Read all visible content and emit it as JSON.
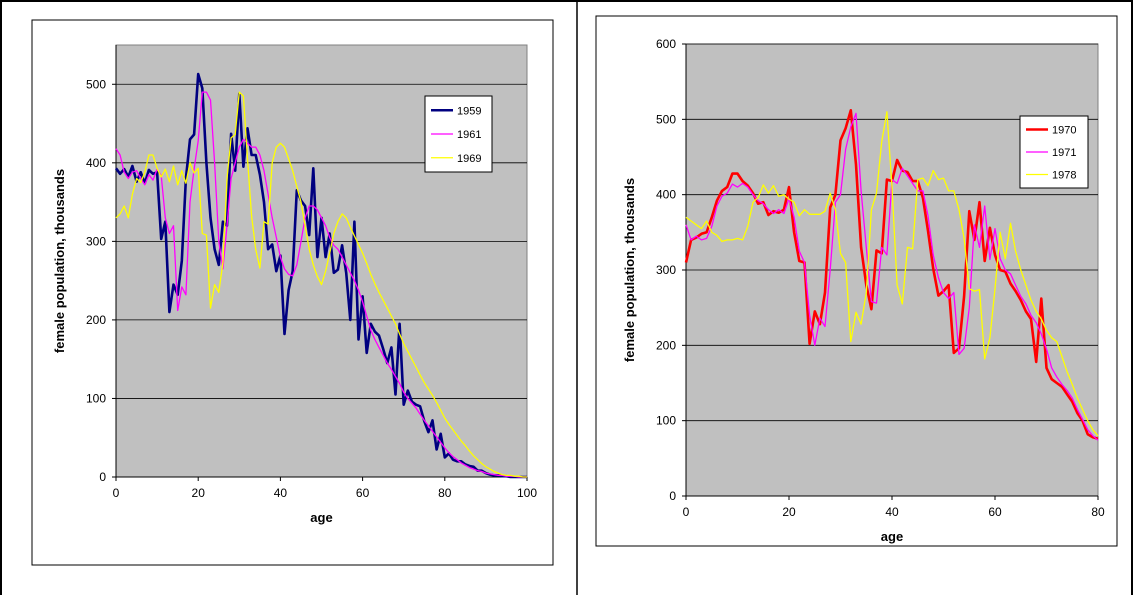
{
  "chart_data": [
    {
      "type": "line",
      "xlabel": "age",
      "ylabel": "female population, thousands",
      "xlim": [
        0,
        100
      ],
      "ylim": [
        0,
        550
      ],
      "xticks": [
        "0",
        "20",
        "40",
        "60",
        "80",
        "100"
      ],
      "yticks": [
        "0",
        "100",
        "200",
        "300",
        "400",
        "500"
      ],
      "grid": "horizontal",
      "legend": "right",
      "background": "#c0c0c0",
      "series": [
        {
          "name": "1959",
          "color": "#000080",
          "x": [
            0,
            1,
            2,
            3,
            4,
            5,
            6,
            7,
            8,
            9,
            10,
            11,
            12,
            13,
            14,
            15,
            16,
            17,
            18,
            19,
            20,
            21,
            22,
            23,
            24,
            25,
            26,
            27,
            28,
            29,
            30,
            31,
            32,
            33,
            34,
            35,
            36,
            37,
            38,
            39,
            40,
            41,
            42,
            43,
            44,
            45,
            46,
            47,
            48,
            49,
            50,
            51,
            52,
            53,
            54,
            55,
            56,
            57,
            58,
            59,
            60,
            61,
            62,
            63,
            64,
            65,
            66,
            67,
            68,
            69,
            70,
            71,
            72,
            73,
            74,
            75,
            76,
            77,
            78,
            79,
            80,
            81,
            82,
            83,
            84,
            85,
            86,
            87,
            88,
            89,
            90,
            91,
            92,
            93,
            94,
            95,
            96,
            97,
            98,
            99,
            100
          ],
          "values": [
            393,
            386,
            392,
            382,
            396,
            376,
            388,
            374,
            391,
            386,
            388,
            303,
            325,
            210,
            245,
            232,
            275,
            380,
            430,
            436,
            513,
            495,
            400,
            330,
            290,
            270,
            325,
            320,
            437,
            390,
            488,
            395,
            444,
            410,
            410,
            385,
            350,
            290,
            296,
            262,
            282,
            182,
            238,
            262,
            365,
            352,
            345,
            308,
            393,
            280,
            330,
            280,
            310,
            260,
            264,
            295,
            260,
            200,
            325,
            175,
            230,
            158,
            195,
            185,
            180,
            163,
            145,
            165,
            105,
            195,
            92,
            110,
            96,
            92,
            90,
            71,
            57,
            72,
            35,
            55,
            25,
            30,
            22,
            20,
            20,
            16,
            14,
            13,
            8,
            8,
            5,
            3,
            2,
            2,
            1,
            1,
            0,
            0,
            0,
            0,
            0
          ]
        },
        {
          "name": "1961",
          "color": "#ff00ff",
          "x": [
            0,
            1,
            2,
            3,
            4,
            5,
            6,
            7,
            8,
            9,
            10,
            11,
            12,
            13,
            14,
            15,
            16,
            17,
            18,
            19,
            20,
            21,
            22,
            23,
            24,
            25,
            26,
            27,
            28,
            29,
            30,
            31,
            32,
            33,
            34,
            35,
            36,
            37,
            38,
            39,
            40,
            41,
            42,
            43,
            44,
            45,
            46,
            47,
            48,
            49,
            50,
            51,
            52,
            53,
            54,
            55,
            56,
            57,
            58,
            59,
            60,
            61,
            62,
            63,
            64,
            65,
            66,
            67,
            68,
            69,
            70,
            71,
            72,
            73,
            74,
            75,
            76,
            77,
            78,
            79,
            80,
            81,
            82,
            83,
            84,
            85,
            86,
            87,
            88,
            89,
            90,
            91,
            92,
            93,
            94,
            95,
            96,
            97,
            98,
            99,
            100
          ],
          "values": [
            418,
            410,
            388,
            380,
            388,
            390,
            380,
            372,
            385,
            378,
            392,
            384,
            330,
            310,
            320,
            212,
            242,
            232,
            350,
            392,
            428,
            490,
            490,
            480,
            400,
            300,
            265,
            320,
            380,
            400,
            420,
            430,
            425,
            420,
            420,
            410,
            390,
            360,
            330,
            305,
            280,
            265,
            258,
            256,
            270,
            300,
            330,
            345,
            345,
            340,
            330,
            320,
            305,
            295,
            290,
            280,
            270,
            260,
            250,
            238,
            223,
            205,
            187,
            175,
            165,
            155,
            145,
            137,
            128,
            119,
            108,
            100,
            94,
            88,
            80,
            72,
            65,
            58,
            51,
            44,
            37,
            31,
            26,
            22,
            18,
            15,
            12,
            10,
            8,
            7,
            5,
            4,
            3,
            2,
            2,
            1,
            1,
            1,
            0,
            0,
            0
          ]
        },
        {
          "name": "1969",
          "color": "#ffff00",
          "x": [
            0,
            1,
            2,
            3,
            4,
            5,
            6,
            7,
            8,
            9,
            10,
            11,
            12,
            13,
            14,
            15,
            16,
            17,
            18,
            19,
            20,
            21,
            22,
            23,
            24,
            25,
            26,
            27,
            28,
            29,
            30,
            31,
            32,
            33,
            34,
            35,
            36,
            37,
            38,
            39,
            40,
            41,
            42,
            43,
            44,
            45,
            46,
            47,
            48,
            49,
            50,
            51,
            52,
            53,
            54,
            55,
            56,
            57,
            58,
            59,
            60,
            61,
            62,
            63,
            64,
            65,
            66,
            67,
            68,
            69,
            70,
            71,
            72,
            73,
            74,
            75,
            76,
            77,
            78,
            79,
            80,
            81,
            82,
            83,
            84,
            85,
            86,
            87,
            88,
            89,
            90,
            91,
            92,
            93,
            94,
            95,
            96,
            97,
            98,
            99,
            100
          ],
          "values": [
            330,
            335,
            345,
            330,
            360,
            380,
            375,
            388,
            410,
            410,
            393,
            382,
            392,
            376,
            396,
            372,
            390,
            374,
            400,
            387,
            393,
            310,
            308,
            215,
            245,
            235,
            273,
            380,
            432,
            436,
            490,
            485,
            405,
            332,
            290,
            266,
            325,
            322,
            400,
            420,
            425,
            420,
            405,
            390,
            370,
            350,
            320,
            290,
            270,
            255,
            245,
            262,
            285,
            310,
            325,
            335,
            330,
            318,
            307,
            296,
            285,
            272,
            258,
            246,
            235,
            225,
            215,
            205,
            195,
            182,
            170,
            160,
            150,
            140,
            130,
            120,
            112,
            104,
            95,
            85,
            75,
            67,
            60,
            53,
            46,
            40,
            33,
            27,
            22,
            17,
            13,
            10,
            7,
            5,
            3,
            2,
            2,
            1,
            1,
            0,
            0
          ]
        }
      ]
    },
    {
      "type": "line",
      "xlabel": "age",
      "ylabel": "female population, thousands",
      "xlim": [
        0,
        80
      ],
      "ylim": [
        0,
        600
      ],
      "xticks": [
        "0",
        "20",
        "40",
        "60",
        "80"
      ],
      "yticks": [
        "0",
        "100",
        "200",
        "300",
        "400",
        "500",
        "600"
      ],
      "grid": "horizontal",
      "legend": "top-right",
      "background": "#c0c0c0",
      "series": [
        {
          "name": "1970",
          "color": "#ff0000",
          "x": [
            0,
            1,
            2,
            3,
            4,
            5,
            6,
            7,
            8,
            9,
            10,
            11,
            12,
            13,
            14,
            15,
            16,
            17,
            18,
            19,
            20,
            21,
            22,
            23,
            24,
            25,
            26,
            27,
            28,
            29,
            30,
            31,
            32,
            33,
            34,
            35,
            36,
            37,
            38,
            39,
            40,
            41,
            42,
            43,
            44,
            45,
            46,
            47,
            48,
            49,
            50,
            51,
            52,
            53,
            54,
            55,
            56,
            57,
            58,
            59,
            60,
            61,
            62,
            63,
            64,
            65,
            66,
            67,
            68,
            69,
            70,
            71,
            72,
            73,
            74,
            75,
            76,
            77,
            78,
            79,
            80
          ],
          "values": [
            310,
            340,
            343,
            348,
            350,
            370,
            392,
            405,
            410,
            428,
            428,
            418,
            412,
            402,
            388,
            390,
            373,
            378,
            376,
            380,
            410,
            350,
            312,
            310,
            202,
            245,
            228,
            270,
            383,
            400,
            472,
            488,
            512,
            440,
            330,
            280,
            248,
            326,
            322,
            420,
            418,
            446,
            432,
            430,
            418,
            418,
            396,
            352,
            302,
            266,
            272,
            280,
            190,
            196,
            265,
            378,
            340,
            390,
            312,
            356,
            320,
            300,
            298,
            282,
            272,
            260,
            245,
            235,
            178,
            262,
            170,
            155,
            150,
            145,
            135,
            125,
            110,
            100,
            82,
            78,
            76
          ]
        },
        {
          "name": "1971",
          "color": "#ff00ff",
          "x": [
            0,
            1,
            2,
            3,
            4,
            5,
            6,
            7,
            8,
            9,
            10,
            11,
            12,
            13,
            14,
            15,
            16,
            17,
            18,
            19,
            20,
            21,
            22,
            23,
            24,
            25,
            26,
            27,
            28,
            29,
            30,
            31,
            32,
            33,
            34,
            35,
            36,
            37,
            38,
            39,
            40,
            41,
            42,
            43,
            44,
            45,
            46,
            47,
            48,
            49,
            50,
            51,
            52,
            53,
            54,
            55,
            56,
            57,
            58,
            59,
            60,
            61,
            62,
            63,
            64,
            65,
            66,
            67,
            68,
            69,
            70,
            71,
            72,
            73,
            74,
            75,
            76,
            77,
            78,
            79,
            80
          ],
          "values": [
            360,
            340,
            345,
            340,
            342,
            358,
            385,
            398,
            402,
            414,
            410,
            415,
            410,
            400,
            392,
            388,
            380,
            375,
            380,
            375,
            395,
            370,
            325,
            310,
            240,
            200,
            236,
            225,
            300,
            390,
            400,
            460,
            490,
            508,
            405,
            330,
            258,
            256,
            330,
            320,
            420,
            415,
            435,
            425,
            415,
            405,
            405,
            372,
            320,
            290,
            270,
            262,
            270,
            188,
            196,
            250,
            360,
            330,
            385,
            314,
            355,
            315,
            300,
            295,
            280,
            265,
            255,
            240,
            230,
            215,
            195,
            170,
            158,
            148,
            140,
            130,
            115,
            102,
            88,
            80,
            74
          ]
        },
        {
          "name": "1978",
          "color": "#ffff00",
          "x": [
            0,
            1,
            2,
            3,
            4,
            5,
            6,
            7,
            8,
            9,
            10,
            11,
            12,
            13,
            14,
            15,
            16,
            17,
            18,
            19,
            20,
            21,
            22,
            23,
            24,
            25,
            26,
            27,
            28,
            29,
            30,
            31,
            32,
            33,
            34,
            35,
            36,
            37,
            38,
            39,
            40,
            41,
            42,
            43,
            44,
            45,
            46,
            47,
            48,
            49,
            50,
            51,
            52,
            53,
            54,
            55,
            56,
            57,
            58,
            59,
            60,
            61,
            62,
            63,
            64,
            65,
            66,
            67,
            68,
            69,
            70,
            71,
            72,
            73,
            74,
            75,
            76,
            77,
            78,
            79,
            80
          ],
          "values": [
            370,
            365,
            360,
            355,
            365,
            350,
            346,
            338,
            340,
            340,
            342,
            340,
            358,
            390,
            396,
            413,
            402,
            412,
            398,
            400,
            394,
            390,
            372,
            380,
            374,
            374,
            374,
            378,
            402,
            380,
            322,
            310,
            205,
            244,
            228,
            270,
            380,
            402,
            470,
            510,
            410,
            280,
            255,
            330,
            328,
            420,
            422,
            412,
            432,
            420,
            422,
            405,
            405,
            380,
            342,
            275,
            272,
            274,
            182,
            210,
            275,
            350,
            315,
            362,
            325,
            300,
            280,
            260,
            245,
            235,
            220,
            210,
            205,
            185,
            165,
            148,
            130,
            115,
            100,
            88,
            80
          ]
        }
      ]
    }
  ]
}
